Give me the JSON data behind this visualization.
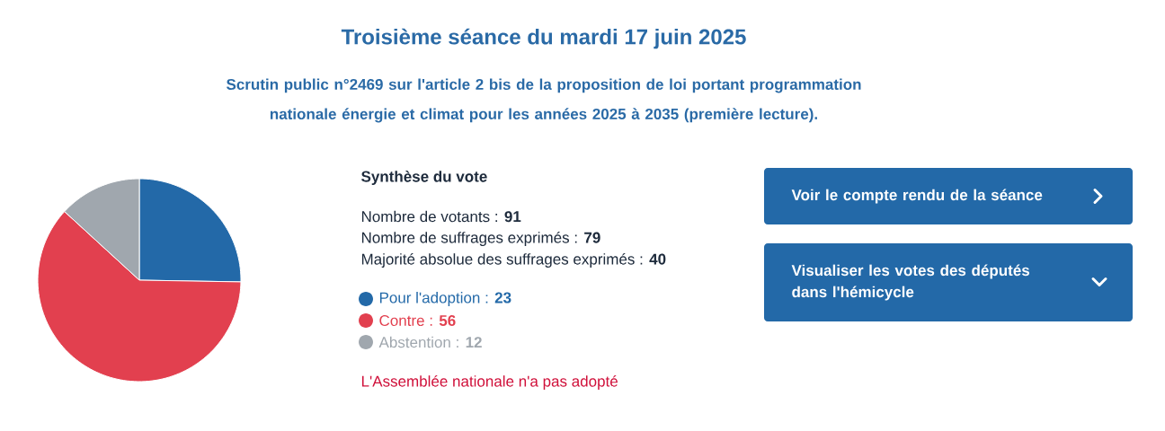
{
  "chart_data": {
    "type": "pie",
    "title": "Troisième séance du mardi 17 juin 2025",
    "subtitle": "Scrutin public n°2469 sur l'article 2 bis de la proposition de loi portant programmation nationale énergie et climat pour les années 2025 à 2035 (première lecture).",
    "legend_title": "Synthèse du vote",
    "categories": [
      "Pour l'adoption",
      "Contre",
      "Abstention"
    ],
    "values": [
      23,
      56,
      12
    ],
    "value_labels": [
      ": **23**",
      ": **56**",
      ": **12**"
    ],
    "colors": [
      "#2369a8",
      "#e2404f",
      "#a0a7ae"
    ],
    "legend": "right",
    "annotations": [
      "Nombre de votants : **91**",
      "Nombre de suffrages exprimés : **79**",
      "Majorité absolue des suffrages exprimés : **40**",
      "L'Assemblée nationale n'a pas adopté",
      "Voir le compte rendu de la séance",
      "Visualiser les votes des députés dans l'hémicycle"
    ]
  }
}
